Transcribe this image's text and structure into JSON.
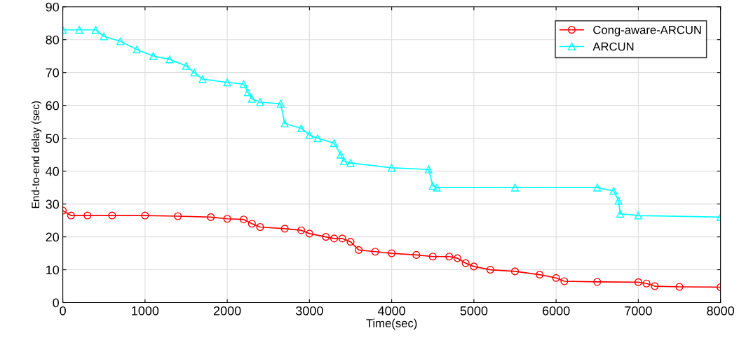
{
  "chart_data": {
    "type": "line",
    "xlabel": "Time(sec)",
    "ylabel": "End-to-end delay (sec)",
    "xlim": [
      0,
      8000
    ],
    "xticks": [
      0,
      1000,
      2000,
      3000,
      4000,
      5000,
      6000,
      7000,
      8000
    ],
    "ylim": [
      0,
      90
    ],
    "yticks": [
      0,
      10,
      20,
      30,
      40,
      50,
      60,
      70,
      80,
      90
    ],
    "grid": true,
    "legend": "top right",
    "line_style": "solid",
    "series": [
      {
        "name": "Cong-aware-ARCUN",
        "color": "#ff0000",
        "marker": "circle",
        "x": [
          0,
          100,
          300,
          600,
          1000,
          1400,
          1800,
          2000,
          2200,
          2300,
          2400,
          2700,
          2900,
          3000,
          3200,
          3300,
          3400,
          3500,
          3600,
          3800,
          4000,
          4300,
          4500,
          4700,
          4800,
          4900,
          5000,
          5200,
          5500,
          5800,
          6000,
          6100,
          6500,
          7000,
          7100,
          7200,
          7500,
          8000
        ],
        "values": [
          28,
          26.5,
          26.5,
          26.5,
          26.5,
          26.3,
          26,
          25.5,
          25.3,
          24,
          23,
          22.5,
          22,
          21,
          20,
          19.5,
          19.5,
          18.5,
          16,
          15.5,
          15,
          14.5,
          14,
          14,
          13.5,
          12,
          11,
          10,
          9.5,
          8.5,
          7.5,
          6.5,
          6.3,
          6.2,
          5.8,
          5,
          4.8,
          4.7
        ]
      },
      {
        "name": "ARCUN",
        "color": "#00ffff",
        "marker": "triangle",
        "x": [
          0,
          200,
          400,
          500,
          700,
          900,
          1100,
          1300,
          1500,
          1600,
          1700,
          2000,
          2200,
          2250,
          2300,
          2400,
          2650,
          2700,
          2900,
          3000,
          3100,
          3300,
          3380,
          3420,
          3500,
          4000,
          4450,
          4500,
          4550,
          5500,
          6500,
          6700,
          6760,
          6780,
          7000,
          8000
        ],
        "values": [
          83,
          83,
          83,
          81,
          79.5,
          77,
          75,
          74,
          72,
          70,
          68,
          67,
          66.5,
          64,
          62,
          61,
          60.5,
          54.5,
          53,
          51,
          50,
          48.5,
          45,
          43,
          42.5,
          41,
          40.5,
          35.5,
          35,
          35,
          35,
          34,
          31,
          27,
          26.5,
          26
        ]
      }
    ]
  }
}
